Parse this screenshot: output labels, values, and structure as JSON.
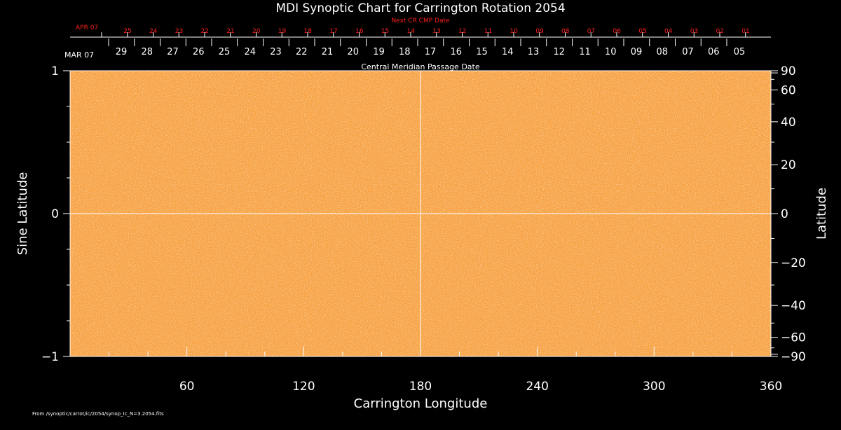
{
  "chart_data": {
    "type": "heatmap",
    "title": "MDI Synoptic Chart for Carrington Rotation 2054",
    "xlabel": "Carrington Longitude",
    "ylabel_left": "Sine Latitude",
    "ylabel_right": "Latitude",
    "xlim": [
      0,
      360
    ],
    "ylim": [
      -1,
      1
    ],
    "x_ticks": [
      60,
      120,
      180,
      240,
      300,
      360
    ],
    "y_ticks_left": [
      {
        "value": 1,
        "label": "1"
      },
      {
        "value": 0,
        "label": "0"
      },
      {
        "value": -1,
        "label": "−1"
      }
    ],
    "y_ticks_right": [
      {
        "deg": 90,
        "label": "90"
      },
      {
        "deg": 60,
        "label": "60"
      },
      {
        "deg": 40,
        "label": "40"
      },
      {
        "deg": 20,
        "label": "20"
      },
      {
        "deg": 0,
        "label": "0"
      },
      {
        "deg": -20,
        "label": "−20"
      },
      {
        "deg": -40,
        "label": "−40"
      },
      {
        "deg": -60,
        "label": "−60"
      },
      {
        "deg": -90,
        "label": "−90"
      }
    ],
    "cmp_axis": {
      "label": "Central Meridian Passage Date",
      "month_label": "MAR 07",
      "dates": [
        "29",
        "28",
        "27",
        "26",
        "25",
        "24",
        "23",
        "22",
        "21",
        "20",
        "19",
        "18",
        "17",
        "16",
        "15",
        "14",
        "13",
        "12",
        "11",
        "10",
        "09",
        "08",
        "07",
        "06",
        "05"
      ]
    },
    "next_cr_axis": {
      "label": "Next CR CMP Date",
      "month_label": "APR 07",
      "dates": [
        "25",
        "24",
        "23",
        "22",
        "21",
        "20",
        "19",
        "18",
        "17",
        "16",
        "15",
        "14",
        "13",
        "12",
        "11",
        "10",
        "09",
        "08",
        "07",
        "06",
        "05",
        "04",
        "03",
        "02",
        "01"
      ]
    },
    "crosshair": {
      "longitude": 180,
      "sine_latitude": 0
    },
    "grid": false,
    "colors": {
      "background": "#000000",
      "field": "#f7a040",
      "field_light": "#ffd7a6",
      "field_dark": "#e0801c",
      "axis": "#ffffff",
      "next_cr": "#ff2020"
    },
    "footer": "From /synoptic/carrot/ic/2054/synop_Ic_N=3.2054.fits"
  }
}
